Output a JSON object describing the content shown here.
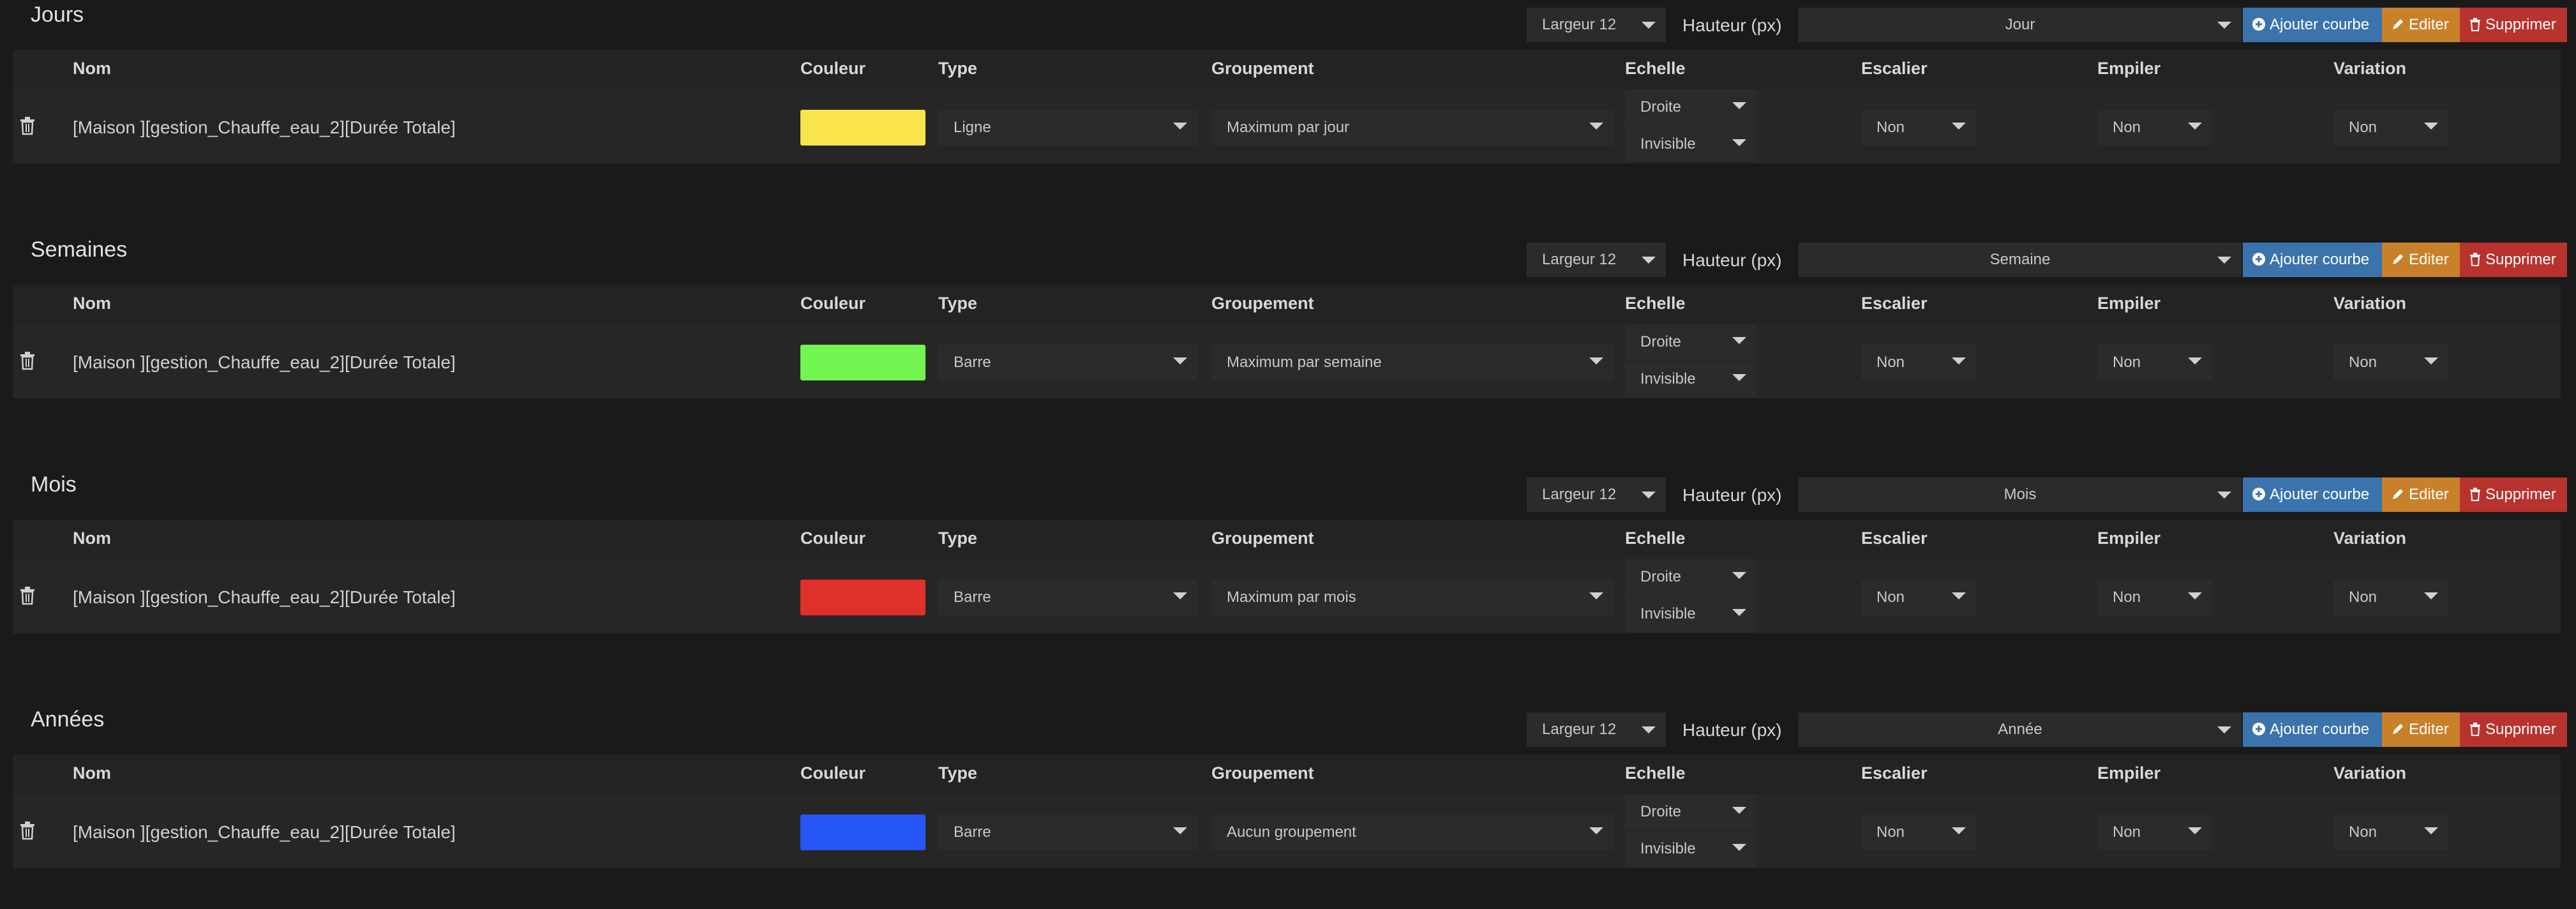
{
  "headers": {
    "nom": "Nom",
    "couleur": "Couleur",
    "type": "Type",
    "groupement": "Groupement",
    "echelle": "Echelle",
    "escalier": "Escalier",
    "empiler": "Empiler",
    "variation": "Variation"
  },
  "controls": {
    "largeur": "Largeur 12",
    "hauteur": "Hauteur (px)",
    "ajouter": "Ajouter courbe",
    "editer": "Editer",
    "supprimer": "Supprimer"
  },
  "colors": {
    "jours": "#f9e44c",
    "semaines": "#73f551",
    "mois": "#e0302a",
    "annees": "#2655f5",
    "btn_blue": "#3b73ad",
    "btn_orange": "#c9802a",
    "btn_red": "#b8322e"
  },
  "sections": [
    {
      "title": "Jours",
      "period": "Jour",
      "row": {
        "name": "[Maison ][gestion_Chauffe_eau_2][Durée Totale]",
        "type": "Ligne",
        "groupement": "Maximum par jour",
        "echelle_side": "Droite",
        "echelle_vis": "Invisible",
        "escalier": "Non",
        "empiler": "Non",
        "variation": "Non"
      }
    },
    {
      "title": "Semaines",
      "period": "Semaine",
      "row": {
        "name": "[Maison ][gestion_Chauffe_eau_2][Durée Totale]",
        "type": "Barre",
        "groupement": "Maximum par semaine",
        "echelle_side": "Droite",
        "echelle_vis": "Invisible",
        "escalier": "Non",
        "empiler": "Non",
        "variation": "Non"
      }
    },
    {
      "title": "Mois",
      "period": "Mois",
      "row": {
        "name": "[Maison ][gestion_Chauffe_eau_2][Durée Totale]",
        "type": "Barre",
        "groupement": "Maximum par mois",
        "echelle_side": "Droite",
        "echelle_vis": "Invisible",
        "escalier": "Non",
        "empiler": "Non",
        "variation": "Non"
      }
    },
    {
      "title": "Années",
      "period": "Année",
      "row": {
        "name": "[Maison ][gestion_Chauffe_eau_2][Durée Totale]",
        "type": "Barre",
        "groupement": "Aucun groupement",
        "echelle_side": "Droite",
        "echelle_vis": "Invisible",
        "escalier": "Non",
        "empiler": "Non",
        "variation": "Non"
      }
    }
  ]
}
